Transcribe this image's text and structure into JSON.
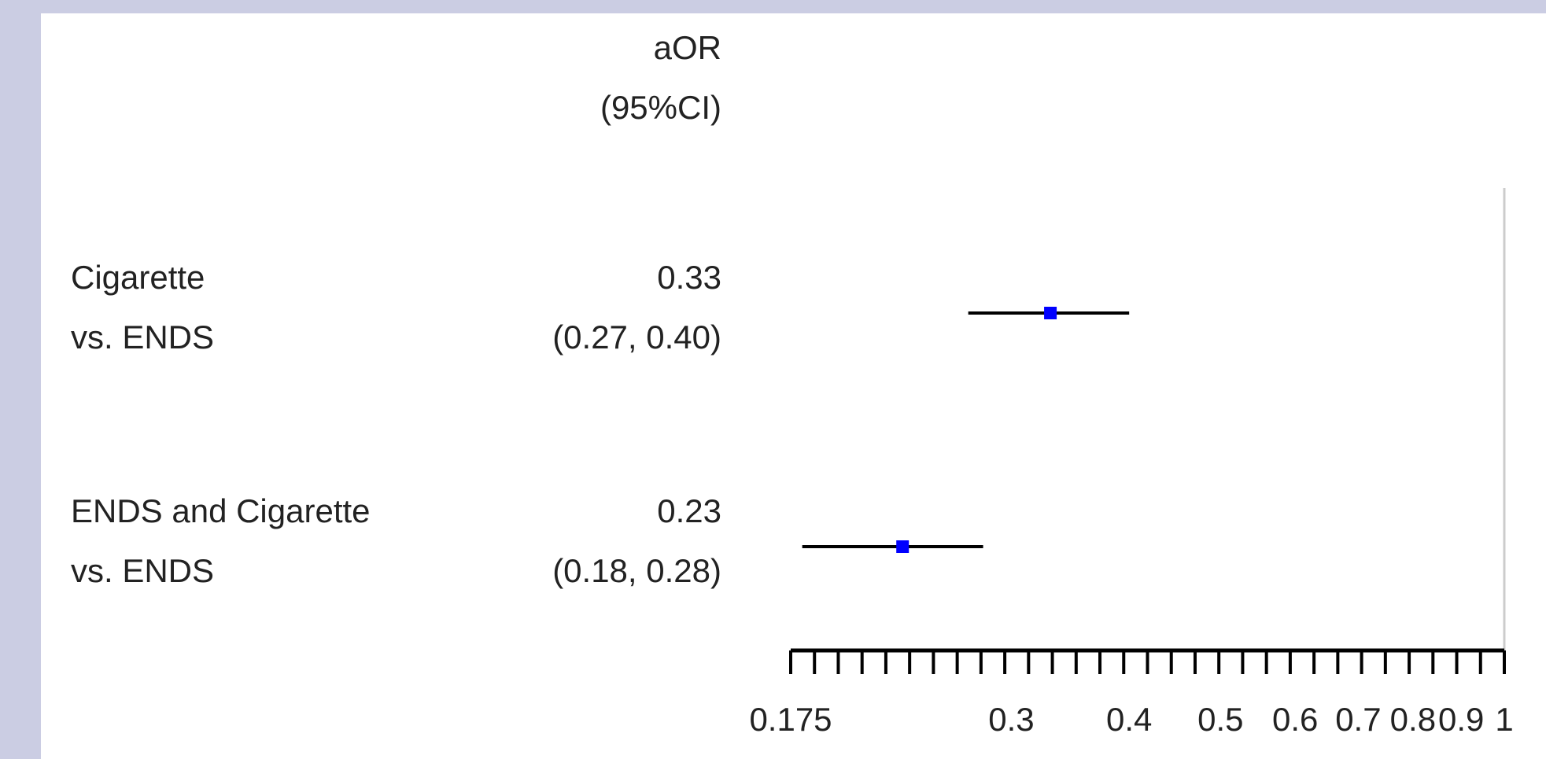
{
  "chart_data": {
    "type": "forest",
    "header": [
      "aOR",
      "(95%CI)"
    ],
    "rows": [
      {
        "label": [
          "Cigarette",
          "vs. ENDS"
        ],
        "estimate": 0.33,
        "ci": [
          0.27,
          0.4
        ],
        "estimate_text": "0.33",
        "ci_text": "(0.27, 0.40)"
      },
      {
        "label": [
          "ENDS and Cigarette",
          "vs. ENDS"
        ],
        "estimate": 0.23,
        "ci": [
          0.18,
          0.28
        ],
        "estimate_text": "0.23",
        "ci_text": "(0.18, 0.28)"
      }
    ],
    "xlim": [
      0.175,
      1
    ],
    "x_scale": "log",
    "tick_labels": [
      "0.175",
      "0.3",
      "0.4",
      "0.5",
      "0.6",
      "0.7",
      "0.8",
      "0.9",
      "1"
    ],
    "tick_values": [
      0.175,
      0.3,
      0.4,
      0.5,
      0.6,
      0.7,
      0.8,
      0.9,
      1
    ],
    "minor_tick_count": 31,
    "reference_line": 1,
    "marker_color": "#0000ff",
    "line_color": "#000000",
    "reference_line_color": "#cccccc",
    "grid": false
  }
}
